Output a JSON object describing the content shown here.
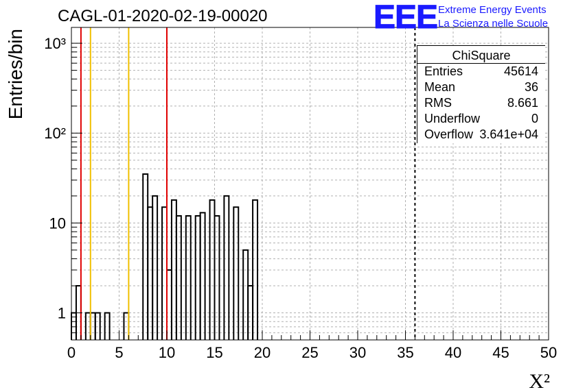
{
  "header": {
    "title": "CAGL-01-2020-02-19-00020",
    "logo_mark": "EEE",
    "logo_line1": "Extreme Energy Events",
    "logo_line2": "La Scienza nelle Scuole",
    "logo_color": "#1a1aff"
  },
  "stats": {
    "title": "ChiSquare",
    "rows": [
      {
        "label": "Entries",
        "value": "45614"
      },
      {
        "label": "Mean",
        "value": "36"
      },
      {
        "label": "RMS",
        "value": "8.661"
      },
      {
        "label": "Underflow",
        "value": "0"
      },
      {
        "label": "Overflow",
        "value": "3.641e+04"
      }
    ]
  },
  "chart_data": {
    "type": "histogram",
    "xlabel": "X²",
    "ylabel": "Entries/bin",
    "xlim": [
      0,
      50
    ],
    "ylim": [
      0.5,
      1500
    ],
    "log_y": true,
    "grid": true,
    "bin_width": 0.5,
    "x_ticks": [
      0,
      5,
      10,
      15,
      20,
      25,
      30,
      35,
      40,
      45,
      50
    ],
    "y_ticks": [
      {
        "value": 1,
        "label": "1"
      },
      {
        "value": 10,
        "label": "10"
      },
      {
        "value": 100,
        "label": "10²"
      },
      {
        "value": 1000,
        "label": "10³"
      }
    ],
    "values": [
      1,
      2,
      0,
      1,
      1,
      1,
      0,
      1,
      0,
      0,
      0,
      1,
      0,
      0,
      0,
      35,
      15,
      20,
      0,
      15,
      3,
      18,
      12,
      0,
      12,
      0,
      12,
      13,
      0,
      18,
      12,
      0,
      20,
      0,
      15,
      0,
      5,
      2,
      18,
      0,
      0,
      0,
      0,
      0,
      0,
      0,
      0,
      0,
      0,
      0,
      0,
      0,
      0,
      0,
      0,
      0,
      0,
      0,
      0,
      0,
      0,
      0,
      0,
      0,
      0,
      0,
      0,
      0,
      0,
      0,
      0,
      0,
      0,
      0,
      0,
      0,
      0,
      0,
      0,
      0,
      0,
      0,
      0,
      0,
      0,
      0,
      0,
      0,
      0,
      0,
      0,
      0,
      0,
      0,
      0,
      0,
      0,
      0,
      0,
      0
    ],
    "vlines": [
      {
        "x": 1,
        "color": "#e00000"
      },
      {
        "x": 2,
        "color": "#f0c000"
      },
      {
        "x": 6,
        "color": "#f0c000"
      },
      {
        "x": 10,
        "color": "#e00000"
      }
    ],
    "dashed_vline": {
      "x": 36
    }
  }
}
